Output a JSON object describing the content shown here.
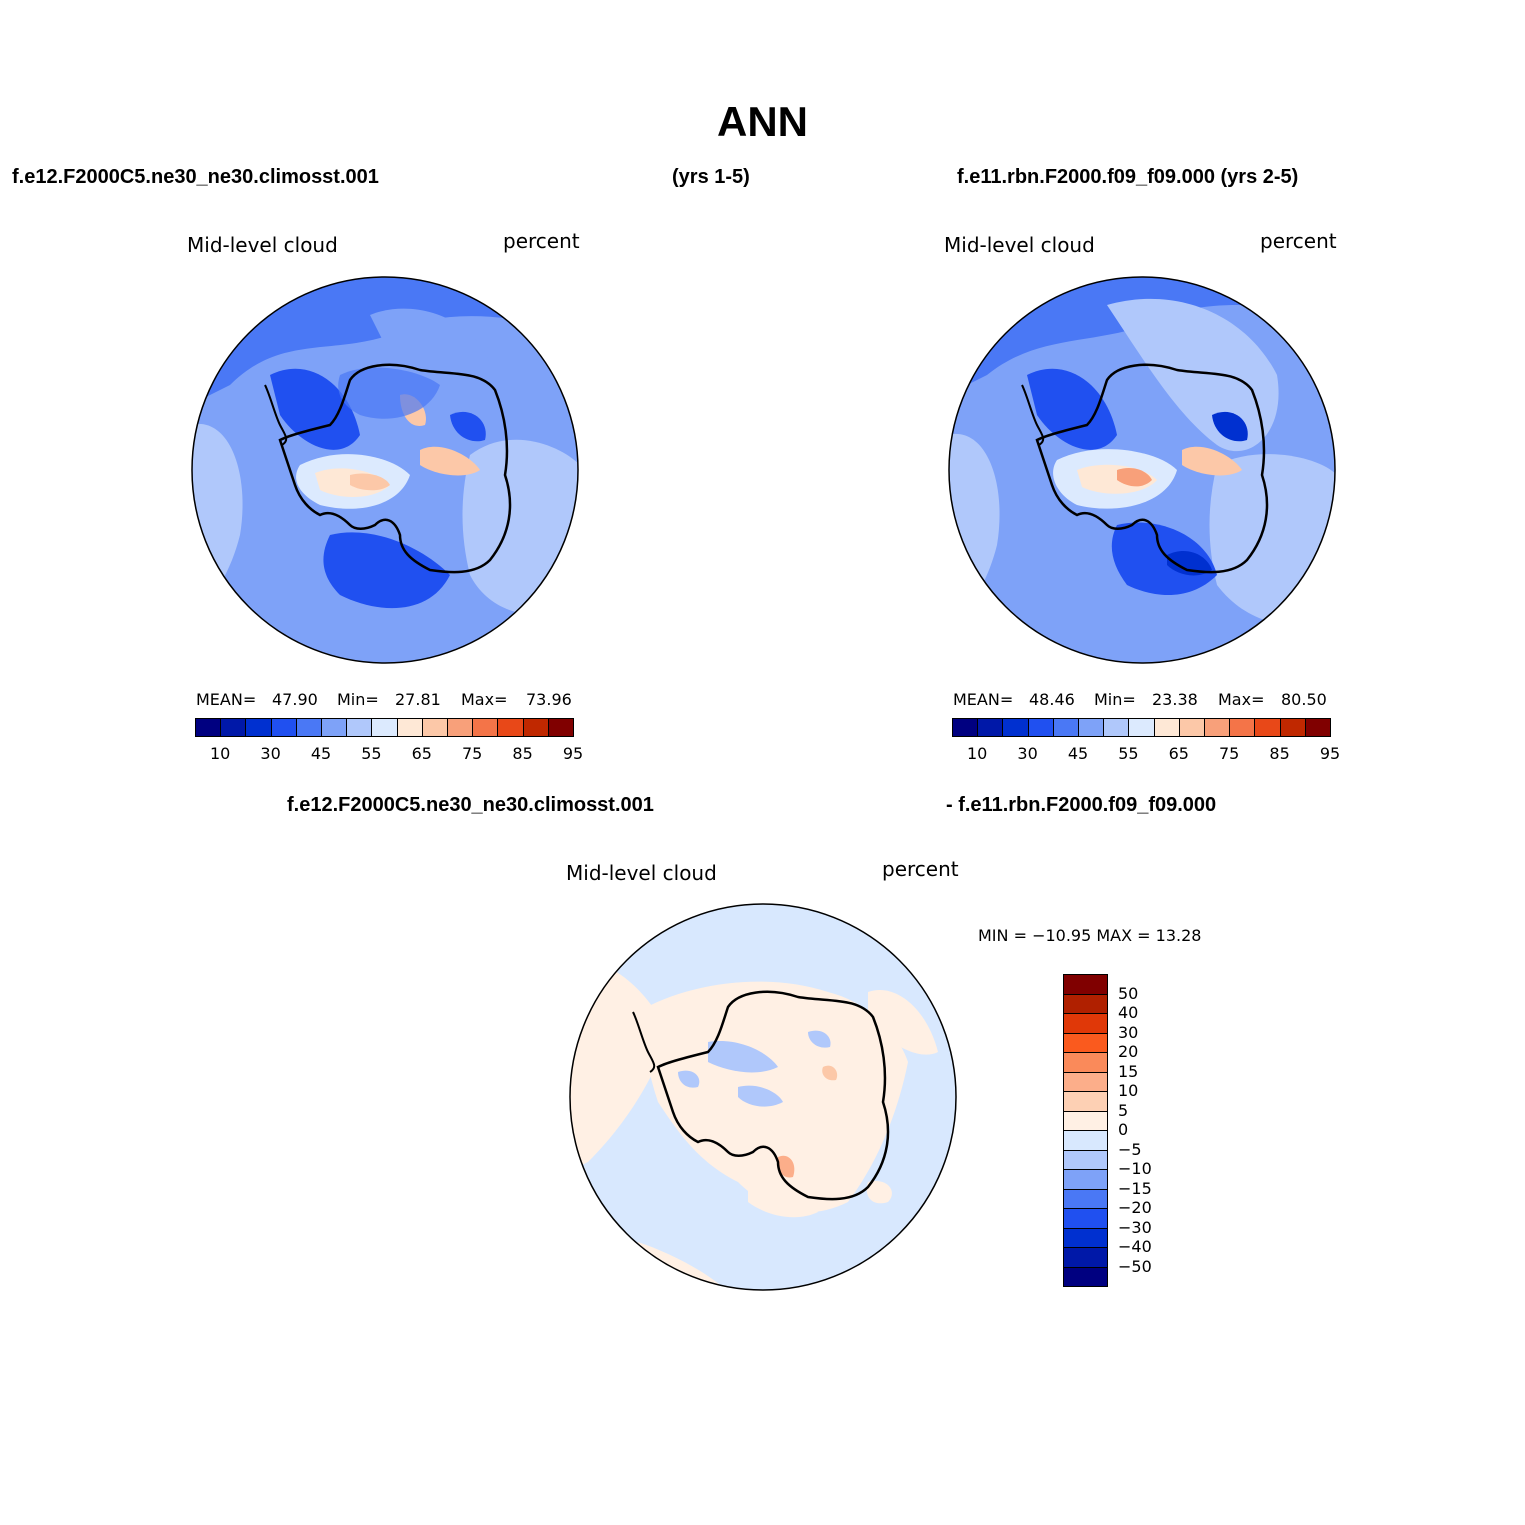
{
  "header": {
    "title": "ANN",
    "case1": "f.e12.F2000C5.ne30_ne30.climosst.001",
    "years1": "(yrs 1-5)",
    "case2": "f.e11.rbn.F2000.f09_f09.000 (yrs 2-5)",
    "diff_case1": "f.e12.F2000C5.ne30_ne30.climosst.001",
    "diff_case2": "- f.e11.rbn.F2000.f09_f09.000"
  },
  "panels": {
    "left": {
      "variable": "Mid-level cloud",
      "units": "percent",
      "mean_label": "MEAN=",
      "mean": "47.90",
      "min_label": "Min=",
      "min": "27.81",
      "max_label": "Max=",
      "max": "73.96"
    },
    "right": {
      "variable": "Mid-level cloud",
      "units": "percent",
      "mean_label": "MEAN=",
      "mean": "48.46",
      "min_label": "Min=",
      "min": "23.38",
      "max_label": "Max=",
      "max": "80.50"
    },
    "diff": {
      "variable": "Mid-level cloud",
      "units": "percent",
      "minmax": "MIN = −10.95  MAX =   13.28"
    }
  },
  "colorbar_main": {
    "colors": [
      "#000080",
      "#0018a8",
      "#0030d0",
      "#2050f0",
      "#4a78f5",
      "#7ea2f8",
      "#b0c8fb",
      "#dceafe",
      "#fee8d6",
      "#fcc8a8",
      "#f8a07a",
      "#f47448",
      "#e84818",
      "#c02800",
      "#800000"
    ],
    "labels": [
      "10",
      "30",
      "45",
      "55",
      "65",
      "75",
      "85",
      "95"
    ]
  },
  "colorbar_diff": {
    "colors": [
      "#800000",
      "#b02000",
      "#e03808",
      "#fa5a1e",
      "#fa8a5a",
      "#fcae8a",
      "#fdd0b4",
      "#fff0e4",
      "#d8e8fe",
      "#b0c8fb",
      "#7ea2f8",
      "#4a78f5",
      "#2050f0",
      "#0030d0",
      "#0018a8",
      "#000080"
    ],
    "labels": [
      "50",
      "40",
      "30",
      "20",
      "15",
      "10",
      "5",
      "0",
      "−5",
      "−10",
      "−15",
      "−20",
      "−30",
      "−40",
      "−50"
    ]
  }
}
